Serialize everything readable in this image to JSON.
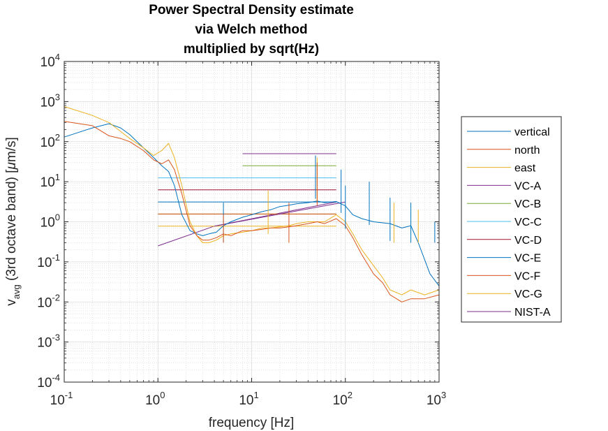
{
  "chart_data": {
    "type": "line",
    "title_lines": [
      "Power Spectral Density estimate",
      "via Welch method",
      "multiplied by sqrt(Hz)"
    ],
    "xlabel": "frequency [Hz]",
    "ylabel": {
      "pre": "v",
      "sub": "avg",
      "post": " (3rd octave band) [",
      "mu": "μ",
      "unit": "m/s]"
    },
    "xscale": "log",
    "yscale": "log",
    "xlim": [
      0.1,
      1000
    ],
    "ylim": [
      0.0001,
      10000
    ],
    "x_tick_labels": [
      {
        "value": 0.1,
        "base": "10",
        "exp": "-1"
      },
      {
        "value": 1,
        "base": "10",
        "exp": "0"
      },
      {
        "value": 10,
        "base": "10",
        "exp": "1"
      },
      {
        "value": 100,
        "base": "10",
        "exp": "2"
      },
      {
        "value": 1000,
        "base": "10",
        "exp": "3"
      }
    ],
    "y_tick_labels": [
      {
        "value": 0.0001,
        "base": "10",
        "exp": "-4"
      },
      {
        "value": 0.001,
        "base": "10",
        "exp": "-3"
      },
      {
        "value": 0.01,
        "base": "10",
        "exp": "-2"
      },
      {
        "value": 0.1,
        "base": "10",
        "exp": "-1"
      },
      {
        "value": 1,
        "base": "10",
        "exp": "0"
      },
      {
        "value": 10,
        "base": "10",
        "exp": "1"
      },
      {
        "value": 100,
        "base": "10",
        "exp": "2"
      },
      {
        "value": 1000,
        "base": "10",
        "exp": "3"
      },
      {
        "value": 10000,
        "base": "10",
        "exp": "4"
      }
    ],
    "grid": true,
    "minor_grid": true,
    "legend_position": "outside-right",
    "series": [
      {
        "name": "vertical",
        "color": "#0072BD",
        "x": [
          0.1,
          0.2,
          0.3,
          0.4,
          0.5,
          0.7,
          0.9,
          1.1,
          1.3,
          1.5,
          1.8,
          2.2,
          2.6,
          3.0,
          3.5,
          4.2,
          5.0,
          6.0,
          8.0,
          10,
          13,
          16,
          20,
          25,
          30,
          40,
          50,
          60,
          80,
          100,
          120,
          150,
          200,
          300,
          400,
          500,
          600,
          800,
          1000
        ],
        "y": [
          130,
          220,
          280,
          220,
          150,
          70,
          40,
          25,
          18,
          8,
          1.5,
          0.6,
          0.5,
          0.45,
          0.5,
          0.55,
          0.8,
          1.0,
          1.3,
          1.5,
          1.8,
          2.0,
          2.4,
          2.6,
          2.8,
          3.0,
          3.3,
          3.0,
          3.2,
          2.5,
          1.5,
          1.2,
          1.0,
          0.9,
          0.7,
          0.8,
          0.3,
          0.05,
          0.025
        ]
      },
      {
        "name": "north",
        "color": "#D95319",
        "x": [
          0.1,
          0.2,
          0.3,
          0.4,
          0.5,
          0.7,
          0.9,
          1.1,
          1.3,
          1.5,
          1.8,
          2.2,
          2.6,
          3.0,
          3.5,
          4.2,
          5.0,
          6.0,
          8.0,
          10,
          13,
          16,
          20,
          25,
          30,
          40,
          50,
          60,
          80,
          100,
          120,
          150,
          200,
          250,
          300,
          400,
          500,
          700,
          1000
        ],
        "y": [
          320,
          250,
          140,
          120,
          100,
          60,
          35,
          28,
          35,
          20,
          5,
          0.8,
          0.45,
          0.35,
          0.35,
          0.4,
          0.5,
          0.45,
          0.6,
          0.6,
          0.65,
          0.7,
          0.7,
          0.75,
          0.8,
          0.9,
          1.0,
          0.9,
          1.2,
          0.8,
          0.4,
          0.15,
          0.05,
          0.03,
          0.015,
          0.01,
          0.012,
          0.012,
          0.015
        ]
      },
      {
        "name": "east",
        "color": "#EDB120",
        "x": [
          0.1,
          0.2,
          0.3,
          0.4,
          0.5,
          0.7,
          0.9,
          1.1,
          1.3,
          1.5,
          1.8,
          2.2,
          2.6,
          3.0,
          3.5,
          4.2,
          5.0,
          6.0,
          8.0,
          10,
          13,
          16,
          20,
          25,
          30,
          40,
          50,
          60,
          80,
          100,
          120,
          150,
          200,
          250,
          300,
          400,
          500,
          700,
          1000
        ],
        "y": [
          750,
          450,
          300,
          180,
          120,
          70,
          45,
          60,
          90,
          40,
          8,
          1.0,
          0.45,
          0.3,
          0.3,
          0.35,
          0.45,
          0.5,
          0.55,
          0.6,
          0.7,
          0.7,
          0.75,
          0.8,
          0.9,
          1.0,
          1.0,
          1.0,
          1.5,
          1.0,
          0.5,
          0.2,
          0.08,
          0.04,
          0.02,
          0.015,
          0.02,
          0.015,
          0.02
        ]
      },
      {
        "name": "VC-A",
        "color": "#7E2F8E",
        "x": [
          1,
          4,
          80
        ],
        "y": [
          0.25,
          0.78,
          3.12
        ]
      },
      {
        "name": "VC-B",
        "color": "#77AC30",
        "x": [
          1,
          80
        ],
        "y": [
          1.56,
          1.56
        ]
      },
      {
        "name": "VC-C",
        "color": "#4DBEEE",
        "x": [
          1,
          80
        ],
        "y": [
          12.5,
          12.5
        ]
      },
      {
        "name": "VC-D",
        "color": "#A2142F",
        "x": [
          1,
          80
        ],
        "y": [
          6.25,
          6.25
        ]
      },
      {
        "name": "VC-E",
        "color": "#0072BD",
        "x": [
          1,
          80
        ],
        "y": [
          3.12,
          3.12
        ]
      },
      {
        "name": "VC-F",
        "color": "#D95319",
        "x": [
          1,
          80
        ],
        "y": [
          1.56,
          1.56
        ]
      },
      {
        "name": "VC-G",
        "color": "#EDB120",
        "x": [
          1,
          80
        ],
        "y": [
          0.78,
          0.78
        ]
      },
      {
        "name": "NIST-A",
        "color": "#7E2F8E",
        "x": [
          8,
          80
        ],
        "y": [
          50,
          50
        ]
      }
    ],
    "extra_lines": [
      {
        "color": "#77AC30",
        "x": [
          8,
          80
        ],
        "y": [
          25,
          25
        ]
      },
      {
        "color": "#7E2F8E",
        "x": [
          4,
          100
        ],
        "y": [
          0.78,
          3.12
        ]
      }
    ],
    "peaks": [
      {
        "color": "#EDB120",
        "x": 50,
        "y": 40
      },
      {
        "color": "#0072BD",
        "x": 48,
        "y": 45
      },
      {
        "color": "#D95319",
        "x": 50,
        "y": 30
      },
      {
        "color": "#EDB120",
        "x": 15,
        "y": 6
      },
      {
        "color": "#D95319",
        "x": 25,
        "y": 3
      },
      {
        "color": "#0072BD",
        "x": 5,
        "y": 3
      },
      {
        "color": "#D95319",
        "x": 5,
        "y": 1.5
      },
      {
        "color": "#0072BD",
        "x": 90,
        "y": 20
      },
      {
        "color": "#0072BD",
        "x": 100,
        "y": 8
      },
      {
        "color": "#0072BD",
        "x": 180,
        "y": 10
      },
      {
        "color": "#0072BD",
        "x": 300,
        "y": 4
      },
      {
        "color": "#EDB120",
        "x": 330,
        "y": 3
      },
      {
        "color": "#0072BD",
        "x": 500,
        "y": 3
      },
      {
        "color": "#EDB120",
        "x": 600,
        "y": 2
      },
      {
        "color": "#0072BD",
        "x": 900,
        "y": 1
      }
    ]
  }
}
